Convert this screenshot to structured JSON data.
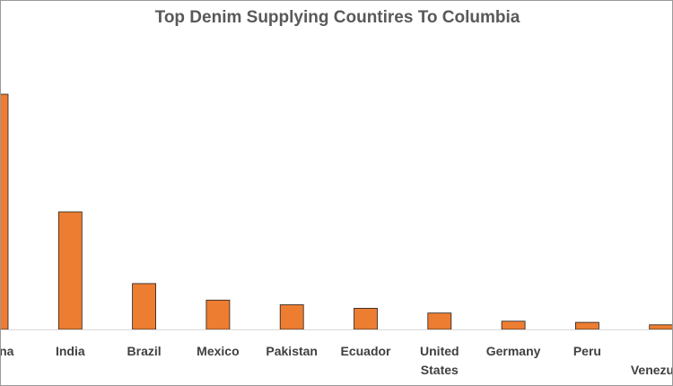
{
  "chart_data": {
    "type": "bar",
    "title": "Top Denim Supplying Countires To Columbia",
    "categories": [
      "China",
      "India",
      "Brazil",
      "Mexico",
      "Pakistan",
      "Ecuador",
      "United States",
      "Germany",
      "Peru",
      "Venezuela"
    ],
    "category_lines": [
      [
        "China"
      ],
      [
        "India"
      ],
      [
        "Brazil"
      ],
      [
        "Mexico"
      ],
      [
        "Pakistan"
      ],
      [
        "Ecuador"
      ],
      [
        "United",
        "States"
      ],
      [
        "Germany"
      ],
      [
        "Peru"
      ],
      [
        "Venezuela"
      ]
    ],
    "values": [
      100,
      50,
      19.5,
      12.5,
      10.5,
      9,
      7,
      3.5,
      3,
      2
    ],
    "xlabel": "",
    "ylabel": "",
    "ylim": [
      0,
      100
    ],
    "grid": false,
    "legend": "none",
    "bar_color": "#ED7D31",
    "bar_edge_color": "#1f1f1f",
    "axis_color": "#d9d9d9"
  }
}
